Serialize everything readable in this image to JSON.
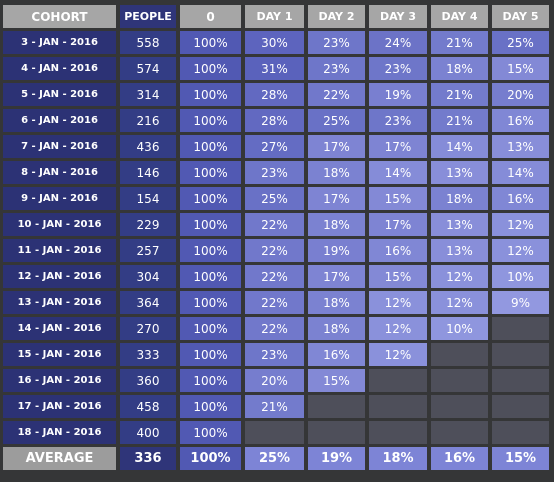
{
  "header": {
    "cohort": "COHORT",
    "people": "PEOPLE",
    "day0": "0",
    "days": [
      "DAY 1",
      "DAY 2",
      "DAY 3",
      "DAY 4",
      "DAY 5"
    ]
  },
  "rows": [
    {
      "cohort": "3 - JAN - 2016",
      "people": "558",
      "day0": "100%",
      "days": [
        "30%",
        "23%",
        "24%",
        "21%",
        "25%"
      ]
    },
    {
      "cohort": "4 - JAN - 2016",
      "people": "574",
      "day0": "100%",
      "days": [
        "31%",
        "23%",
        "23%",
        "18%",
        "15%"
      ]
    },
    {
      "cohort": "5 - JAN - 2016",
      "people": "314",
      "day0": "100%",
      "days": [
        "28%",
        "22%",
        "19%",
        "21%",
        "20%"
      ]
    },
    {
      "cohort": "6 - JAN - 2016",
      "people": "216",
      "day0": "100%",
      "days": [
        "28%",
        "25%",
        "23%",
        "21%",
        "16%"
      ]
    },
    {
      "cohort": "7 - JAN - 2016",
      "people": "436",
      "day0": "100%",
      "days": [
        "27%",
        "17%",
        "17%",
        "14%",
        "13%"
      ]
    },
    {
      "cohort": "8 - JAN - 2016",
      "people": "146",
      "day0": "100%",
      "days": [
        "23%",
        "18%",
        "14%",
        "13%",
        "14%"
      ]
    },
    {
      "cohort": "9 - JAN - 2016",
      "people": "154",
      "day0": "100%",
      "days": [
        "25%",
        "17%",
        "15%",
        "18%",
        "16%"
      ]
    },
    {
      "cohort": "10 - JAN - 2016",
      "people": "229",
      "day0": "100%",
      "days": [
        "22%",
        "18%",
        "17%",
        "13%",
        "12%"
      ]
    },
    {
      "cohort": "11 - JAN - 2016",
      "people": "257",
      "day0": "100%",
      "days": [
        "22%",
        "19%",
        "16%",
        "13%",
        "12%"
      ]
    },
    {
      "cohort": "12 - JAN - 2016",
      "people": "304",
      "day0": "100%",
      "days": [
        "22%",
        "17%",
        "15%",
        "12%",
        "10%"
      ]
    },
    {
      "cohort": "13 - JAN - 2016",
      "people": "364",
      "day0": "100%",
      "days": [
        "22%",
        "18%",
        "12%",
        "12%",
        "9%"
      ]
    },
    {
      "cohort": "14 - JAN - 2016",
      "people": "270",
      "day0": "100%",
      "days": [
        "22%",
        "18%",
        "12%",
        "10%",
        ""
      ]
    },
    {
      "cohort": "15 - JAN - 2016",
      "people": "333",
      "day0": "100%",
      "days": [
        "23%",
        "16%",
        "12%",
        "",
        ""
      ]
    },
    {
      "cohort": "16 - JAN - 2016",
      "people": "360",
      "day0": "100%",
      "days": [
        "20%",
        "15%",
        "",
        "",
        ""
      ]
    },
    {
      "cohort": "17 - JAN - 2016",
      "people": "458",
      "day0": "100%",
      "days": [
        "21%",
        "",
        "",
        "",
        ""
      ]
    },
    {
      "cohort": "18 - JAN - 2016",
      "people": "400",
      "day0": "100%",
      "days": [
        "",
        "",
        "",
        "",
        ""
      ]
    }
  ],
  "average": {
    "label": "AVERAGE",
    "people": "336",
    "day0": "100%",
    "days": [
      "25%",
      "19%",
      "18%",
      "16%",
      "15%"
    ]
  },
  "colors": {
    "background": "#353637",
    "header_grey": "#a6a6a6",
    "cohort_navy": "#2c3275",
    "people_blue": "#333d85",
    "day0_blue": "#5159b3",
    "empty": "#4e4f5a",
    "heat_low": "#9298e0",
    "heat_high": "#5a62bc"
  }
}
